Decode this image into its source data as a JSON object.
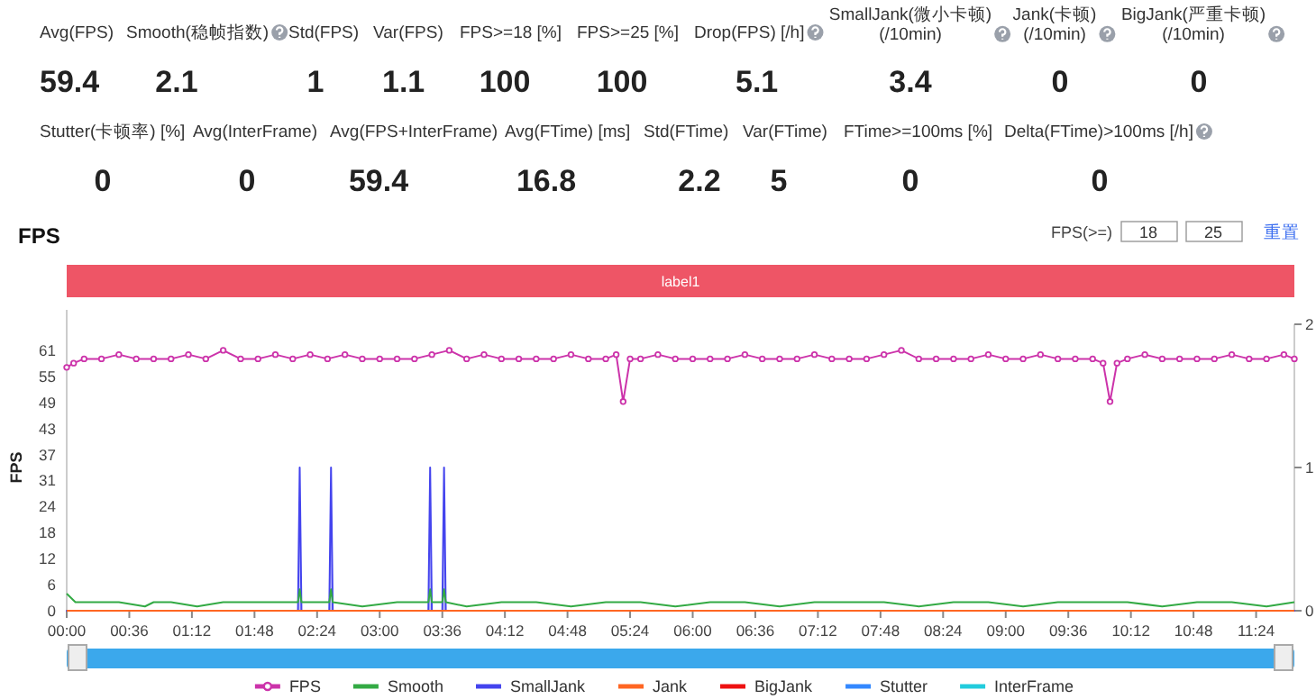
{
  "chart_data": [
    {
      "type": "other",
      "categories": [
        "Avg(FPS)",
        "Smooth(稳帧指数)",
        "Std(FPS)",
        "Var(FPS)",
        "FPS>=18 [%]",
        "FPS>=25 [%]",
        "Drop(FPS) [/h]",
        "SmallJank(微小卡顿)\n(/10min)",
        "Jank(卡顿)\n(/10min)",
        "BigJank(严重卡顿)\n(/10min)",
        "Stutter(卡顿率) [%]",
        "Avg(InterFrame)",
        "Avg(FPS+InterFrame)",
        "Avg(FTime) [ms]",
        "Std(FTime)",
        "Var(FTime)",
        "FTime>=100ms [%]",
        "Delta(FTime)>100ms [/h]"
      ],
      "values": [
        59.4,
        2.1,
        1,
        1.1,
        100,
        100,
        5.1,
        3.4,
        0,
        0,
        0,
        0,
        59.4,
        16.8,
        2.2,
        5,
        0,
        0
      ],
      "data_labels": true
    },
    {
      "type": "line",
      "title": "FPS",
      "ylabel": "FPS",
      "legend": "bottom",
      "marker": "circle",
      "annotations": [
        "FPS(>=)",
        "18",
        "25",
        "重置",
        "label1"
      ],
      "xlim": [
        0,
        706
      ],
      "xticks": [
        {
          "value": 0,
          "label": "00:00"
        },
        {
          "value": 36,
          "label": "00:36"
        },
        {
          "value": 72,
          "label": "01:12"
        },
        {
          "value": 108,
          "label": "01:48"
        },
        {
          "value": 144,
          "label": "02:24"
        },
        {
          "value": 180,
          "label": "03:00"
        },
        {
          "value": 216,
          "label": "03:36"
        },
        {
          "value": 252,
          "label": "04:12"
        },
        {
          "value": 288,
          "label": "04:48"
        },
        {
          "value": 324,
          "label": "05:24"
        },
        {
          "value": 360,
          "label": "06:00"
        },
        {
          "value": 396,
          "label": "06:36"
        },
        {
          "value": 432,
          "label": "07:12"
        },
        {
          "value": 468,
          "label": "07:48"
        },
        {
          "value": 504,
          "label": "08:24"
        },
        {
          "value": 540,
          "label": "09:00"
        },
        {
          "value": 576,
          "label": "09:36"
        },
        {
          "value": 612,
          "label": "10:12"
        },
        {
          "value": 648,
          "label": "10:48"
        },
        {
          "value": 684,
          "label": "11:24"
        }
      ],
      "ylim": [
        0,
        67.1
      ],
      "yticks": [
        0,
        {
          "value": 6.1,
          "label": "6"
        },
        {
          "value": 12.2,
          "label": "12"
        },
        {
          "value": 18.3,
          "label": "18"
        },
        {
          "value": 24.4,
          "label": "24"
        },
        {
          "value": 30.5,
          "label": "31"
        },
        {
          "value": 36.6,
          "label": "37"
        },
        {
          "value": 42.7,
          "label": "43"
        },
        {
          "value": 48.8,
          "label": "49"
        },
        {
          "value": 54.9,
          "label": "55"
        },
        61
      ],
      "y2lim": [
        0,
        2
      ],
      "y2ticks": [
        0,
        1,
        2
      ],
      "series": [
        {
          "name": "FPS",
          "color": "#cc33aa",
          "x": [
            0,
            4,
            10,
            20,
            30,
            40,
            50,
            60,
            70,
            80,
            90,
            100,
            110,
            120,
            130,
            140,
            150,
            160,
            170,
            180,
            190,
            200,
            210,
            220,
            230,
            240,
            250,
            260,
            270,
            280,
            290,
            300,
            310,
            316,
            320,
            324,
            330,
            340,
            350,
            360,
            370,
            380,
            390,
            400,
            410,
            420,
            430,
            440,
            450,
            460,
            470,
            480,
            490,
            500,
            510,
            520,
            530,
            540,
            550,
            560,
            570,
            580,
            590,
            596,
            600,
            604,
            610,
            620,
            630,
            640,
            650,
            660,
            670,
            680,
            690,
            700,
            706
          ],
          "values": [
            57,
            58,
            59,
            59,
            60,
            59,
            59,
            59,
            60,
            59,
            61,
            59,
            59,
            60,
            59,
            60,
            59,
            60,
            59,
            59,
            59,
            59,
            60,
            61,
            59,
            60,
            59,
            59,
            59,
            59,
            60,
            59,
            59,
            60,
            49,
            59,
            59,
            60,
            59,
            59,
            59,
            59,
            60,
            59,
            59,
            59,
            60,
            59,
            59,
            59,
            60,
            61,
            59,
            59,
            59,
            59,
            60,
            59,
            59,
            60,
            59,
            59,
            59,
            58,
            49,
            58,
            59,
            60,
            59,
            59,
            59,
            59,
            60,
            59,
            59,
            60,
            59
          ]
        },
        {
          "name": "Smooth",
          "color": "#33aa44",
          "marker": "none",
          "x": [
            0,
            5,
            15,
            30,
            45,
            50,
            60,
            75,
            90,
            100,
            110,
            120,
            133,
            134,
            135,
            145,
            151,
            152,
            153,
            170,
            190,
            208,
            209,
            210,
            216,
            217,
            218,
            230,
            250,
            270,
            290,
            310,
            330,
            350,
            370,
            390,
            410,
            430,
            450,
            470,
            490,
            510,
            530,
            550,
            570,
            590,
            610,
            630,
            650,
            670,
            690,
            706
          ],
          "values": [
            4,
            2,
            2,
            2,
            1,
            2,
            2,
            1,
            2,
            2,
            2,
            2,
            2,
            5,
            2,
            2,
            2,
            5,
            2,
            1,
            2,
            2,
            5,
            2,
            2,
            5,
            2,
            1,
            2,
            2,
            1,
            2,
            2,
            1,
            2,
            2,
            1,
            2,
            2,
            2,
            1,
            2,
            2,
            1,
            2,
            2,
            2,
            1,
            2,
            2,
            1,
            2
          ]
        },
        {
          "name": "SmallJank",
          "color": "#4444ee",
          "type": "area",
          "axis": "y2",
          "marker": "none",
          "x": [
            0,
            133,
            134,
            135,
            151,
            152,
            153,
            208,
            209,
            210,
            216,
            217,
            218,
            706
          ],
          "values": [
            0,
            0,
            1,
            0,
            0,
            1,
            0,
            0,
            1,
            0,
            0,
            1,
            0,
            0
          ]
        },
        {
          "name": "Jank",
          "color": "#ff6622",
          "marker": "none",
          "x": [
            0,
            706
          ],
          "values": [
            0,
            0
          ]
        },
        {
          "name": "BigJank",
          "color": "#ee1111",
          "marker": "none",
          "values": [
            null,
            null
          ]
        },
        {
          "name": "Stutter",
          "color": "#3388ff",
          "marker": "none",
          "values": [
            null,
            null
          ]
        },
        {
          "name": "InterFrame",
          "color": "#22ccdd",
          "marker": "none",
          "values": [
            null,
            null
          ]
        }
      ]
    }
  ]
}
